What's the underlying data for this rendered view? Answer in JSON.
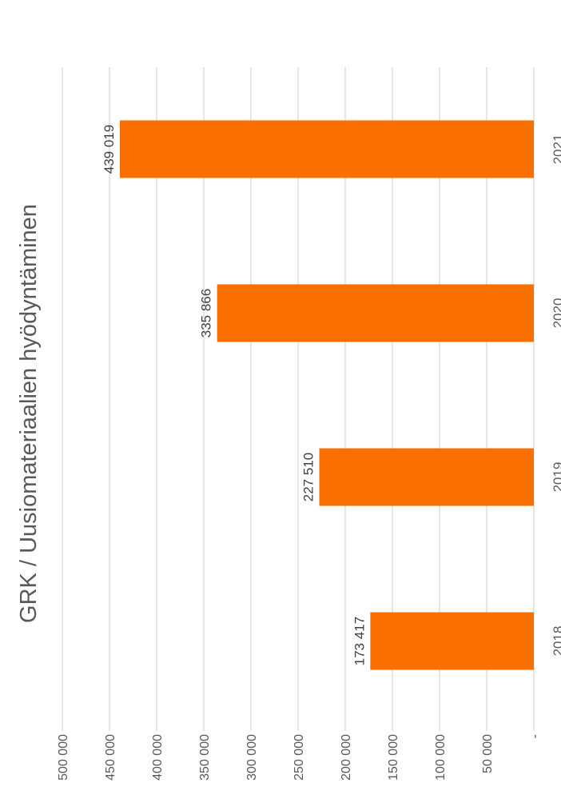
{
  "chart_data": {
    "type": "bar",
    "orientation": "vertical",
    "title": "GRK / Uusiomateriaalien hyödyntäminen",
    "categories": [
      "2018",
      "2019",
      "2020",
      "2021"
    ],
    "series": [
      {
        "values": [
          173417,
          227510,
          335866,
          439019
        ],
        "labels": [
          "173 417",
          "227 510",
          "335 866",
          "439 019"
        ],
        "color": "#f97000"
      }
    ],
    "ylim": [
      0,
      500000
    ],
    "yticks": [
      {
        "value": 0,
        "label": "-"
      },
      {
        "value": 50000,
        "label": "50 000"
      },
      {
        "value": 100000,
        "label": "100 000"
      },
      {
        "value": 150000,
        "label": "150 000"
      },
      {
        "value": 200000,
        "label": "200 000"
      },
      {
        "value": 250000,
        "label": "250 000"
      },
      {
        "value": 300000,
        "label": "300 000"
      },
      {
        "value": 350000,
        "label": "350 000"
      },
      {
        "value": 400000,
        "label": "400 000"
      },
      {
        "value": 450000,
        "label": "450 000"
      },
      {
        "value": 500000,
        "label": "500 000"
      }
    ],
    "grid": true,
    "legend": "none",
    "display_rotation": "90-degrees-counterclockwise"
  }
}
